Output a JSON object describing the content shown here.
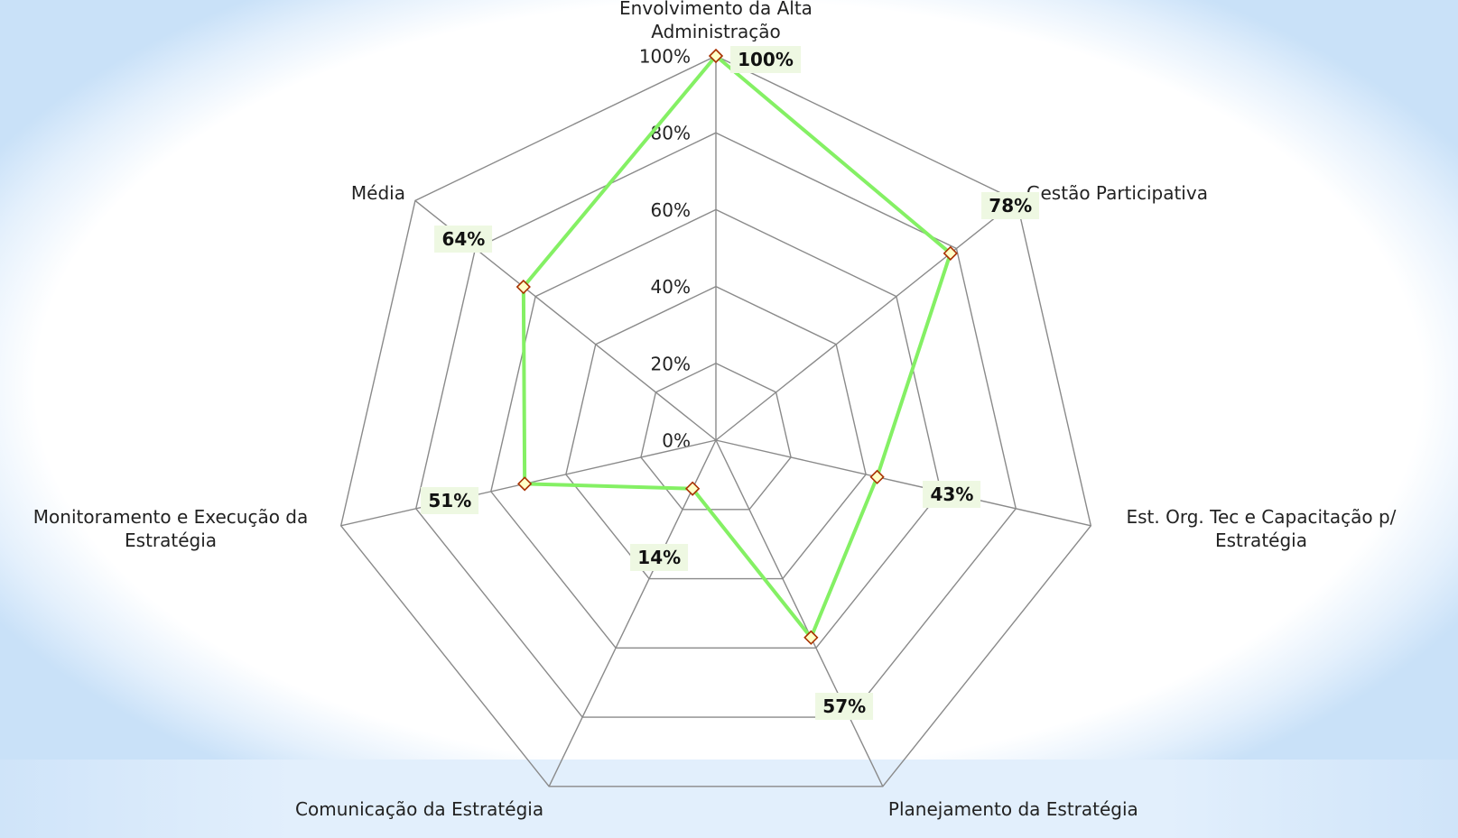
{
  "chart_data": {
    "type": "radar",
    "categories": [
      "Envolvimento da Alta Administração",
      "Gestão Participativa",
      "Est. Org. Tec e Capacitação p/ Estratégia",
      "Planejamento da Estratégia",
      "Comunicação da Estratégia",
      "Monitoramento e Execução da Estratégia",
      "Média"
    ],
    "series": [
      {
        "color": "#84f064",
        "values": [
          100,
          78,
          43,
          57,
          14,
          51,
          64
        ],
        "value_labels": [
          "100%",
          "78%",
          "43%",
          "57%",
          "14%",
          "51%",
          "64%"
        ]
      }
    ],
    "ylim": [
      0,
      100
    ],
    "yticks": [
      {
        "value": 0,
        "label": "0%"
      },
      {
        "value": 20,
        "label": "20%"
      },
      {
        "value": 40,
        "label": "40%"
      },
      {
        "value": 60,
        "label": "60%"
      },
      {
        "value": 80,
        "label": "80%"
      },
      {
        "value": 100,
        "label": "100%"
      }
    ],
    "grid": true
  }
}
